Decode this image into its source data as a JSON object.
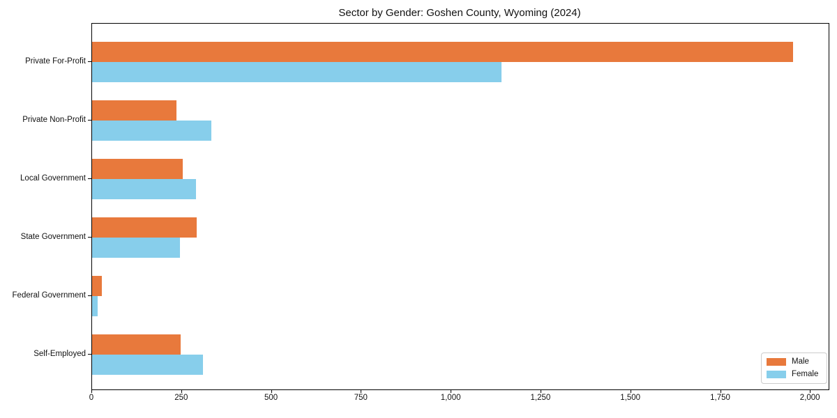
{
  "chart_data": {
    "type": "bar",
    "orientation": "horizontal",
    "title": "Sector by Gender: Goshen County, Wyoming (2024)",
    "categories": [
      "Private For-Profit",
      "Private Non-Profit",
      "Local Government",
      "State Government",
      "Federal Government",
      "Self-Employed"
    ],
    "series": [
      {
        "name": "Male",
        "color": "#e8793c",
        "values": [
          1950,
          235,
          252,
          291,
          27,
          247
        ]
      },
      {
        "name": "Female",
        "color": "#87ceeb",
        "values": [
          1140,
          331,
          289,
          244,
          15,
          309
        ]
      }
    ],
    "xlabel": "",
    "ylabel": "",
    "xlim": [
      0,
      2050
    ],
    "x_ticks": [
      0,
      250,
      500,
      750,
      1000,
      1250,
      1500,
      1750,
      2000
    ],
    "x_tick_labels": [
      "0",
      "250",
      "500",
      "750",
      "1,000",
      "1,250",
      "1,500",
      "1,750",
      "2,000"
    ],
    "grid": false,
    "legend": {
      "position": "lower right"
    }
  }
}
